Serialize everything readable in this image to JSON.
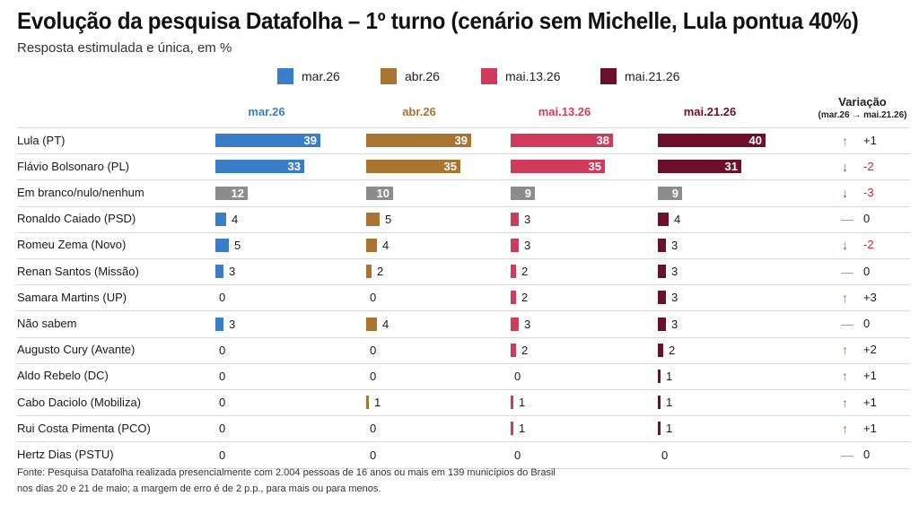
{
  "title": "Evolução da pesquisa Datafolha – 1º turno (cenário sem Michelle, Lula pontua 40%)",
  "subtitle": "Resposta estimulada e única, em %",
  "source_line1": "Fonte: Pesquisa Datafolha realizada presencialmente com 2.004 pessoas de 16 anos ou mais em 139 municípios do Brasil",
  "source_line2": "nos dias 20 e 21 de maio; a margem de erro é de 2 p.p., para mais ou para menos.",
  "variation_header": "Variação",
  "variation_subheader": "(mar.26 → mai.21.26)",
  "colors": {
    "mar.26": "#3a7ec8",
    "abr.26": "#a8742f",
    "mai.13.26": "#d23a5c",
    "mai.21.26": "#6e0f2a",
    "neutral": "#8c8c8c",
    "up": "#3aaa35",
    "down": "#d42a1f",
    "zero": "#9a9a9a"
  },
  "icons": {
    "up": "arrow-up-icon",
    "down": "arrow-down-icon",
    "zero": "dash-icon"
  },
  "chart_data": {
    "type": "bar",
    "orientation": "horizontal",
    "title": "Evolução da pesquisa Datafolha – 1º turno (cenário sem Michelle, Lula pontua 40%)",
    "subtitle": "Resposta estimulada e única, em %",
    "legend_position": "top",
    "grid": false,
    "categories": [
      "Lula (PT)",
      "Flávio Bolsonaro (PL)",
      "Em branco/nulo/nenhum",
      "Ronaldo Caiado (PSD)",
      "Romeu Zema (Novo)",
      "Renan Santos (Missão)",
      "Samara Martins (UP)",
      "Não sabem",
      "Augusto Cury (Avante)",
      "Aldo Rebelo (DC)",
      "Cabo Daciolo (Mobiliza)",
      "Rui Costa Pimenta (PCO)",
      "Hertz Dias (PSTU)"
    ],
    "series": [
      {
        "name": "mar.26",
        "values": [
          39,
          33,
          12,
          4,
          5,
          3,
          0,
          3,
          0,
          0,
          0,
          0,
          0
        ]
      },
      {
        "name": "abr.26",
        "values": [
          39,
          35,
          10,
          5,
          4,
          2,
          0,
          4,
          0,
          0,
          1,
          0,
          0
        ]
      },
      {
        "name": "mai.13.26",
        "values": [
          38,
          35,
          9,
          3,
          3,
          2,
          2,
          3,
          2,
          0,
          1,
          1,
          0
        ]
      },
      {
        "name": "mai.21.26",
        "values": [
          40,
          31,
          9,
          4,
          3,
          3,
          3,
          3,
          2,
          1,
          1,
          1,
          0
        ]
      }
    ],
    "variation": {
      "label": "Variação",
      "period": "(mar.26 → mai.21.26)",
      "values": [
        "+1",
        "-2",
        "-3",
        "0",
        "-2",
        "0",
        "+3",
        "0",
        "+2",
        "+1",
        "+1",
        "+1",
        "0"
      ],
      "direction": [
        "up",
        "down",
        "down",
        "zero",
        "down",
        "zero",
        "up",
        "zero",
        "up",
        "up",
        "up",
        "up",
        "zero"
      ]
    },
    "neutral_category": "Em branco/nulo/nenhum"
  }
}
